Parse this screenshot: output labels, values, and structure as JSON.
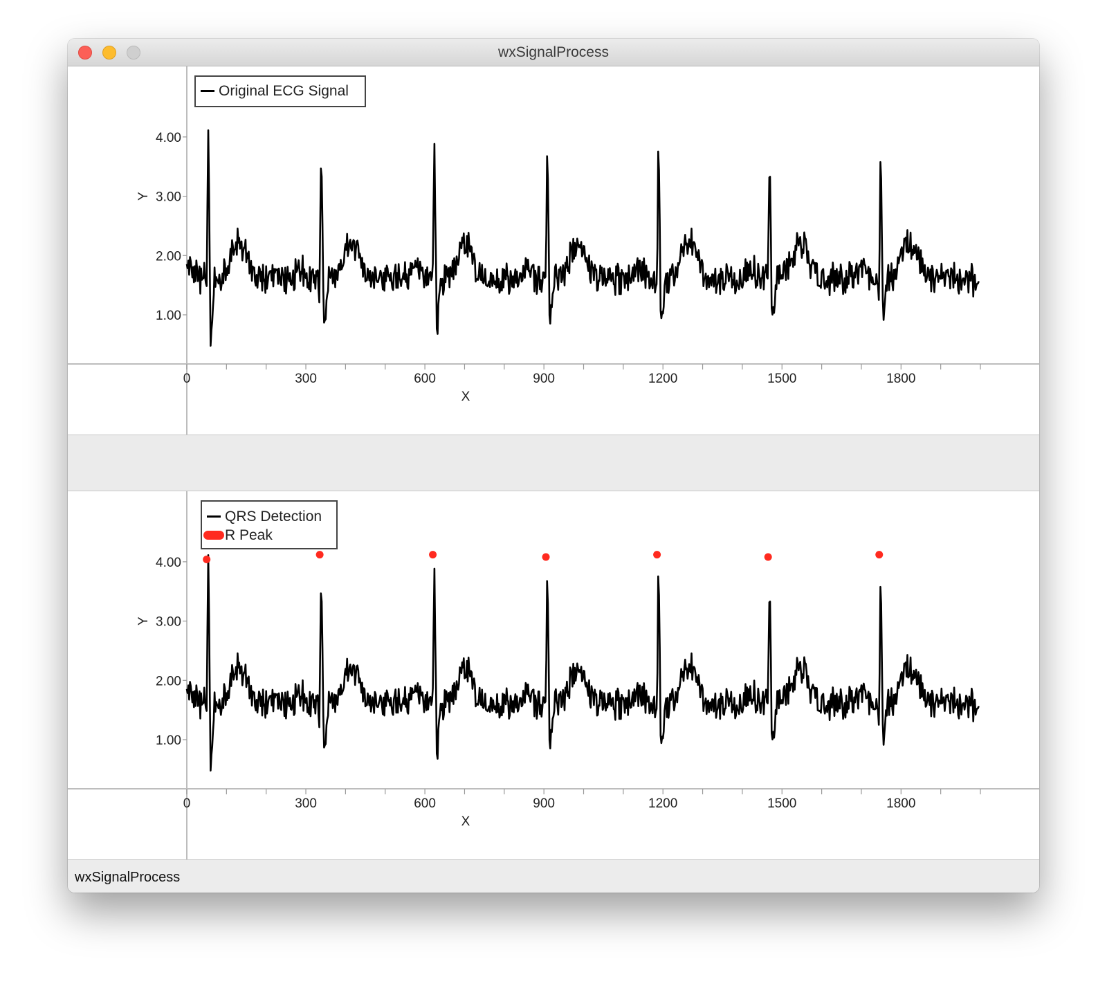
{
  "window": {
    "title": "wxSignalProcess"
  },
  "statusbar": {
    "text": "wxSignalProcess"
  },
  "colors": {
    "signal": "#000000",
    "r_peak": "#ff2a1f"
  },
  "chart_data": [
    {
      "type": "line",
      "legend": [
        "Original ECG Signal"
      ],
      "xlabel": "X",
      "ylabel": "Y",
      "xlim": [
        0,
        2000
      ],
      "ylim": [
        0.2,
        5.0
      ],
      "x_ticks": [
        0,
        300,
        600,
        900,
        1200,
        1500,
        1800
      ],
      "y_ticks": [
        "1.00",
        "2.00",
        "3.00",
        "4.00"
      ],
      "beats_x": [
        50,
        335,
        620,
        905,
        1185,
        1465,
        1745
      ],
      "beats_y": [
        4.04,
        4.12,
        4.12,
        4.08,
        4.12,
        4.08,
        4.12
      ],
      "baseline": 1.6,
      "sample_range": [
        0,
        1996
      ],
      "series": [
        {
          "name": "Original ECG Signal",
          "color": "#000000"
        }
      ]
    },
    {
      "type": "line",
      "legend": [
        "QRS Detection",
        "R Peak"
      ],
      "xlabel": "X",
      "ylabel": "Y",
      "xlim": [
        0,
        2000
      ],
      "ylim": [
        0.2,
        5.0
      ],
      "x_ticks": [
        0,
        300,
        600,
        900,
        1200,
        1500,
        1800
      ],
      "y_ticks": [
        "1.00",
        "2.00",
        "3.00",
        "4.00"
      ],
      "beats_x": [
        50,
        335,
        620,
        905,
        1185,
        1465,
        1745
      ],
      "beats_y": [
        4.04,
        4.12,
        4.12,
        4.08,
        4.12,
        4.08,
        4.12
      ],
      "baseline": 1.6,
      "sample_range": [
        0,
        1996
      ],
      "series": [
        {
          "name": "QRS Detection",
          "color": "#000000"
        }
      ],
      "markers": {
        "name": "R Peak",
        "color": "#ff2a1f",
        "x": [
          50,
          335,
          620,
          905,
          1185,
          1465,
          1745
        ],
        "y": [
          4.04,
          4.12,
          4.12,
          4.08,
          4.12,
          4.08,
          4.12
        ]
      }
    }
  ]
}
